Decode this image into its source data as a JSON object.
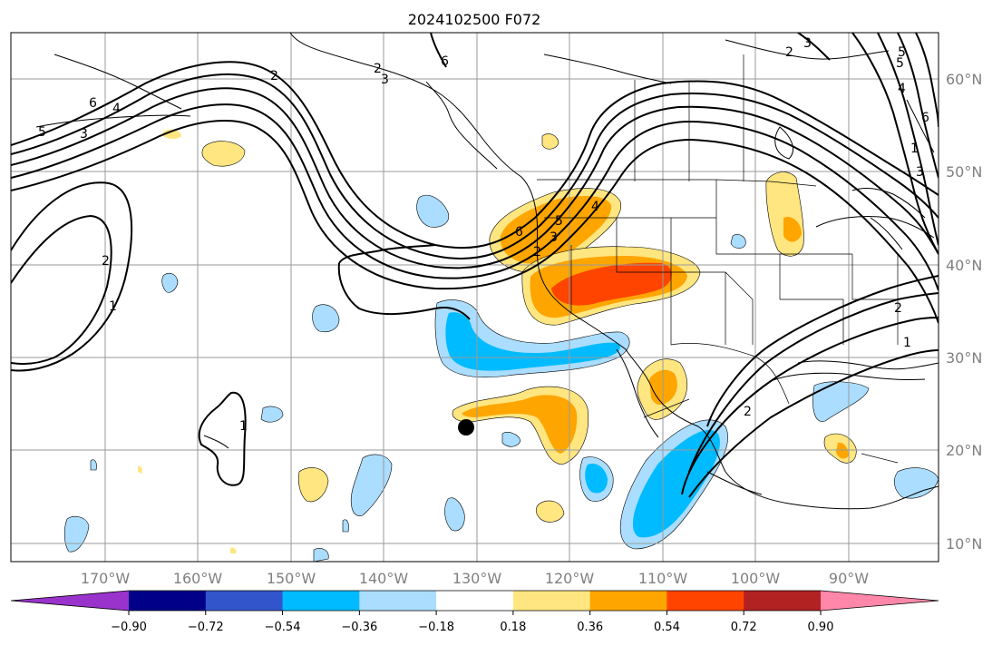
{
  "title": "2024102500 F072",
  "lon_labels": [
    "170°W",
    "160°W",
    "150°W",
    "140°W",
    "130°W",
    "120°W",
    "110°W",
    "100°W",
    "90°W"
  ],
  "lat_labels": [
    "60°N",
    "50°N",
    "40°N",
    "30°N",
    "20°N",
    "10°N"
  ],
  "colorbar": {
    "colors": [
      "#9933cc",
      "#000088",
      "#3355cc",
      "#00bbff",
      "#aaddff",
      "#ffffff",
      "#ffe680",
      "#ffa500",
      "#ff4400",
      "#b22222",
      "#ff88aa"
    ],
    "tick_labels": [
      "−0.90",
      "−0.72",
      "−0.54",
      "−0.36",
      "−0.18",
      "0.18",
      "0.36",
      "0.54",
      "0.72",
      "0.90"
    ]
  },
  "contour_labels": [
    "6",
    "4",
    "5",
    "3",
    "6",
    "2",
    "3",
    "2",
    "1",
    "2",
    "1",
    "5",
    "4",
    "3",
    "2",
    "6",
    "5",
    "4",
    "3",
    "2",
    "1",
    "6",
    "5",
    "3",
    "2",
    "1",
    "2"
  ],
  "colors": {
    "light_yellow": "#ffe680",
    "orange": "#ffa500",
    "red_orange": "#ff4400",
    "deep_sky": "#00bbff",
    "light_blue": "#aaddff"
  }
}
